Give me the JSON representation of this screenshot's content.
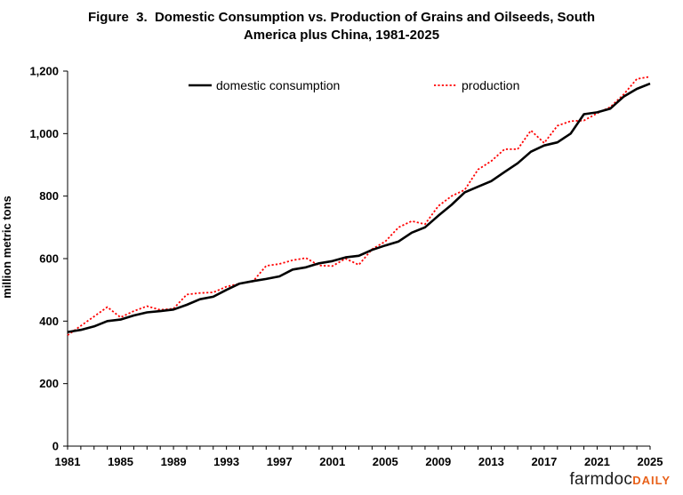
{
  "chart_data": {
    "type": "line",
    "title": "Figure  3.  Domestic Consumption vs. Production of Grains and Oilseeds, South America plus China, 1981-2025",
    "title_lines": [
      "Figure  3.  Domestic Consumption vs. Production of Grains and Oilseeds, South",
      "America plus China, 1981-2025"
    ],
    "xlabel": "",
    "ylabel": "million metric tons",
    "ylim": [
      0,
      1200
    ],
    "xlim": [
      1981,
      2025
    ],
    "yticks": [
      "0",
      "200",
      "400",
      "600",
      "800",
      "1,000",
      "1,200"
    ],
    "ytick_values": [
      0,
      200,
      400,
      600,
      800,
      1000,
      1200
    ],
    "xticks": [
      "1981",
      "1985",
      "1989",
      "1993",
      "1997",
      "2001",
      "2005",
      "2009",
      "2013",
      "2017",
      "2021",
      "2025"
    ],
    "xtick_values": [
      1981,
      1985,
      1989,
      1993,
      1997,
      2001,
      2005,
      2009,
      2013,
      2017,
      2021,
      2025
    ],
    "grid": false,
    "legend_position": "top",
    "x": [
      1981,
      1982,
      1983,
      1984,
      1985,
      1986,
      1987,
      1988,
      1989,
      1990,
      1991,
      1992,
      1993,
      1994,
      1995,
      1996,
      1997,
      1998,
      1999,
      2000,
      2001,
      2002,
      2003,
      2004,
      2005,
      2006,
      2007,
      2008,
      2009,
      2010,
      2011,
      2012,
      2013,
      2014,
      2015,
      2016,
      2017,
      2018,
      2019,
      2020,
      2021,
      2022,
      2023,
      2024,
      2025
    ],
    "series": [
      {
        "name": "domestic consumption",
        "color": "#000000",
        "style": "solid",
        "values": [
          365,
          372,
          383,
          400,
          405,
          418,
          428,
          432,
          437,
          452,
          470,
          478,
          500,
          520,
          528,
          535,
          543,
          565,
          572,
          585,
          592,
          604,
          609,
          628,
          642,
          655,
          683,
          700,
          737,
          772,
          812,
          830,
          848,
          877,
          905,
          942,
          962,
          972,
          1000,
          1062,
          1068,
          1080,
          1118,
          1143,
          1160
        ]
      },
      {
        "name": "production",
        "color": "#ff0000",
        "style": "dotted",
        "values": [
          355,
          385,
          415,
          445,
          412,
          432,
          448,
          436,
          440,
          485,
          490,
          492,
          510,
          520,
          527,
          577,
          583,
          595,
          602,
          578,
          576,
          600,
          580,
          630,
          655,
          700,
          720,
          710,
          768,
          800,
          820,
          885,
          912,
          950,
          950,
          1010,
          970,
          1025,
          1040,
          1042,
          1065,
          1085,
          1125,
          1175,
          1182
        ]
      }
    ]
  },
  "brand": {
    "part1": "farmdoc",
    "part2": "DAILY"
  }
}
